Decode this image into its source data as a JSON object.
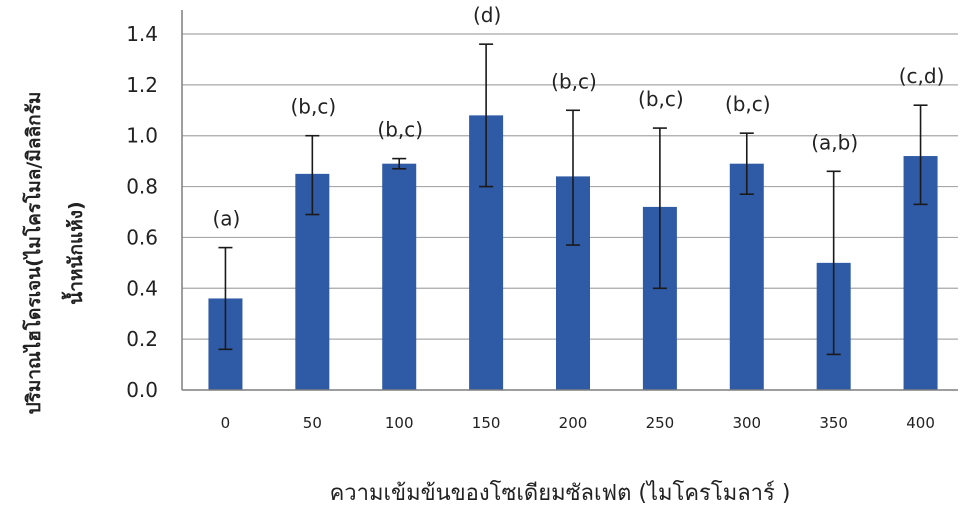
{
  "chart_data": {
    "type": "bar",
    "xlabel": "ความเข้มข้นของโซเดียมซัลเฟต (ไมโครโมลาร์ )",
    "ylabel_lines": [
      "ปริมาณไฮโดรเจน(ไมโครโมล/มิลลิกรัม",
      "น้ำหนักแห้ง)"
    ],
    "categories": [
      "0",
      "50",
      "100",
      "150",
      "200",
      "250",
      "300",
      "350",
      "400"
    ],
    "values": [
      0.36,
      0.85,
      0.89,
      1.08,
      0.84,
      0.72,
      0.89,
      0.5,
      0.92
    ],
    "error_upper": [
      0.56,
      1.0,
      0.91,
      1.36,
      1.1,
      1.03,
      1.01,
      0.86,
      1.12
    ],
    "error_lower": [
      0.16,
      0.69,
      0.87,
      0.8,
      0.57,
      0.4,
      0.77,
      0.14,
      0.73
    ],
    "letters": [
      "(a)",
      "(b,c)",
      "(b,c)",
      "(d)",
      "(b,c)",
      "(b,c)",
      "(b,c)",
      "(a,b)",
      "(c,d)"
    ],
    "yticks": [
      "0.0",
      "0.2",
      "0.4",
      "0.6",
      "0.8",
      "1.0",
      "1.2",
      "1.4"
    ],
    "ylim": [
      0,
      1.4
    ],
    "grid": true,
    "legend": "none",
    "colors": {
      "bar": "#2f5aa6",
      "grid": "#a8a8a8",
      "axis": "#7f7f7f",
      "error": "#1a1a1a",
      "text": "#222222"
    }
  }
}
